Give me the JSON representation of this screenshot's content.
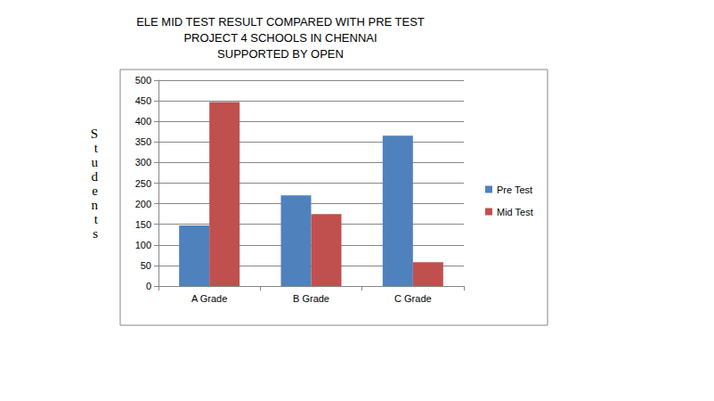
{
  "chart_data": {
    "type": "bar",
    "title": "ELE MID TEST RESULT COMPARED WITH PRE TEST\nPROJECT 4 SCHOOLS IN CHENNAI\nSUPPORTED BY OPEN",
    "y_label": "Students",
    "categories": [
      "A Grade",
      "B Grade",
      "C Grade"
    ],
    "series": [
      {
        "name": "Pre Test",
        "color": "#4f81bd",
        "values": [
          147,
          220,
          365
        ]
      },
      {
        "name": "Mid Test",
        "color": "#c0504d",
        "values": [
          447,
          175,
          58
        ]
      }
    ],
    "ylim": [
      0,
      500
    ],
    "yticks": [
      0,
      50,
      100,
      150,
      200,
      250,
      300,
      350,
      400,
      450,
      500
    ],
    "grid": true,
    "legend": "right"
  }
}
